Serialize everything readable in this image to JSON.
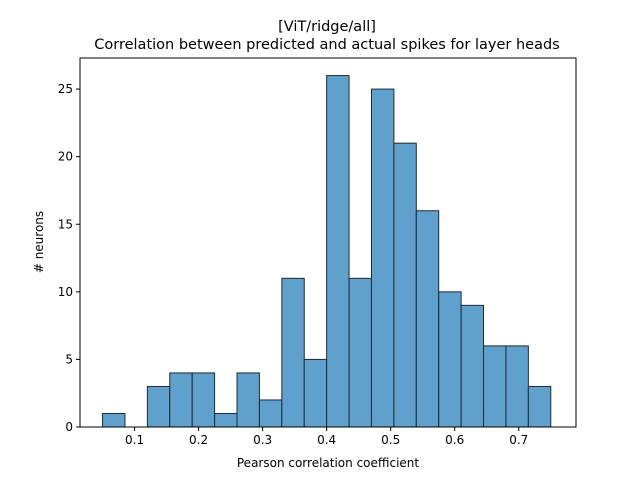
{
  "chart_data": {
    "type": "bar",
    "title_lines": [
      "[ViT/ridge/all]",
      "Correlation between predicted and actual spikes for layer heads"
    ],
    "xlabel": "Pearson correlation coefficient",
    "ylabel": "# neurons",
    "xlim": [
      0.0148,
      0.7894
    ],
    "ylim": [
      0,
      27.3
    ],
    "xticks": [
      "0.1",
      "0.2",
      "0.3",
      "0.4",
      "0.5",
      "0.6",
      "0.7"
    ],
    "yticks": [
      "0",
      "5",
      "10",
      "15",
      "20",
      "25"
    ],
    "bin_edges": [
      0.05,
      0.085,
      0.12,
      0.155,
      0.19,
      0.225,
      0.26,
      0.295,
      0.33,
      0.365,
      0.4,
      0.435,
      0.47,
      0.505,
      0.54,
      0.575,
      0.61,
      0.645,
      0.68,
      0.715,
      0.75
    ],
    "counts": [
      1,
      0,
      3,
      4,
      4,
      1,
      4,
      2,
      11,
      5,
      26,
      11,
      25,
      21,
      16,
      10,
      9,
      6,
      6,
      3
    ],
    "bar_color": "#5fa0cd",
    "edge_color": "#1f2a33",
    "grid": false
  }
}
